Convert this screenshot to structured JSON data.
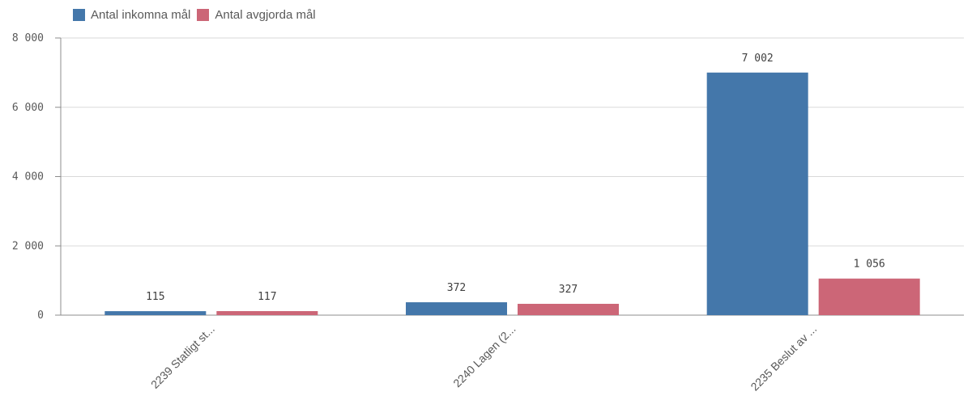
{
  "chart_data": {
    "type": "bar",
    "categories": [
      "2239 Statligt st...",
      "2240 Lagen (2...",
      "2235 Beslut av ..."
    ],
    "series": [
      {
        "name": "Antal inkomna mål",
        "values": [
          115,
          372,
          7002
        ],
        "value_labels": [
          "115",
          "372",
          "7 002"
        ],
        "color": "#4477aa"
      },
      {
        "name": "Antal avgjorda mål",
        "values": [
          117,
          327,
          1056
        ],
        "value_labels": [
          "117",
          "327",
          "1 056"
        ],
        "color": "#cc6677"
      }
    ],
    "y_ticks": [
      0,
      2000,
      4000,
      6000,
      8000
    ],
    "y_tick_labels": [
      "0",
      "2 000",
      "4 000",
      "6 000",
      "8 000"
    ],
    "ylim": [
      0,
      8000
    ],
    "grid": true,
    "legend": "top-left",
    "title": "",
    "xlabel": "",
    "ylabel": ""
  }
}
